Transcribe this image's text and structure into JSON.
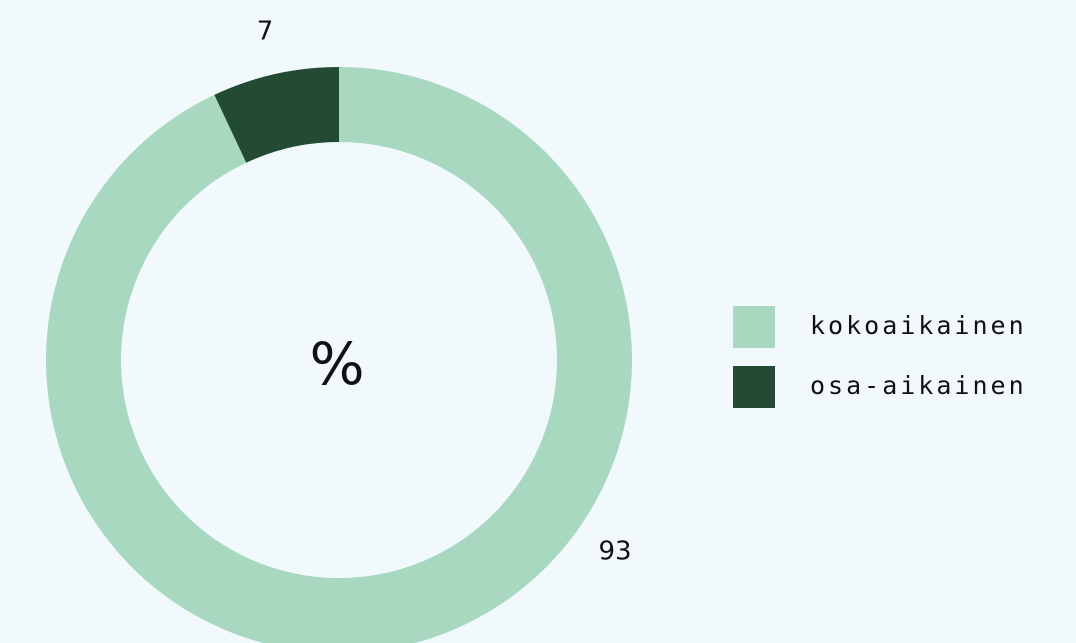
{
  "chart_data": {
    "type": "donut",
    "center_label": "%",
    "categories": [
      "kokoaikainen",
      "osa-aikainen"
    ],
    "values": [
      93,
      7
    ],
    "colors": [
      "#a8d8c0",
      "#234a33"
    ],
    "legend": "right"
  }
}
